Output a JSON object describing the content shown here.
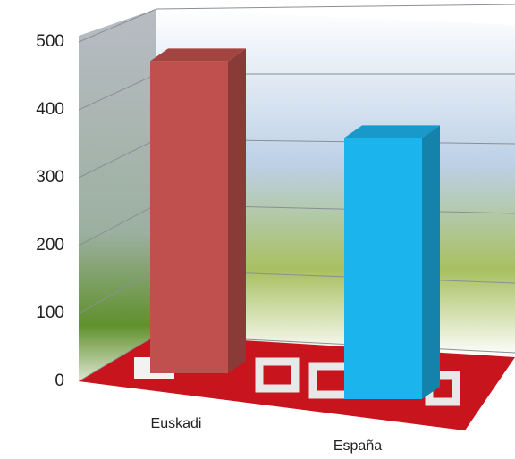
{
  "chart_data": {
    "type": "bar",
    "categories": [
      "Euskadi",
      "España"
    ],
    "values": [
      460,
      385
    ],
    "colors": [
      "#c0504d",
      "#1cb4ec"
    ],
    "ylim": [
      0,
      500
    ],
    "yticks": [
      0,
      100,
      200,
      300,
      400,
      500
    ],
    "grid": true
  }
}
